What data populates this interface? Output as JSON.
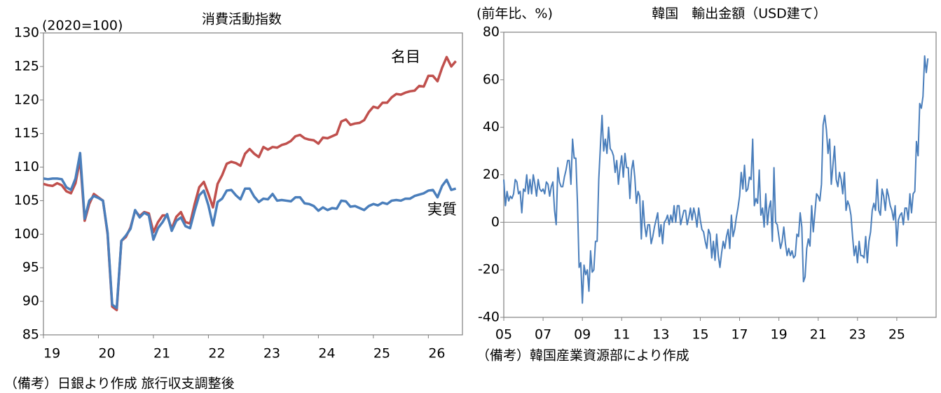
{
  "chart_data": [
    {
      "type": "line",
      "title": "消費活動指数",
      "y_unit_label": "(2020=100)",
      "note": "（備考）日銀より作成 旅行収支調整後",
      "xlim": [
        19,
        26.62
      ],
      "xticks": [
        19,
        20,
        21,
        22,
        23,
        24,
        25,
        26
      ],
      "ylim": [
        85,
        130
      ],
      "yticks": [
        85,
        90,
        95,
        100,
        105,
        110,
        115,
        120,
        125,
        130
      ],
      "x": [
        19,
        19.083,
        19.167,
        19.25,
        19.333,
        19.417,
        19.5,
        19.583,
        19.667,
        19.75,
        19.833,
        19.917,
        20,
        20.083,
        20.167,
        20.25,
        20.333,
        20.417,
        20.5,
        20.583,
        20.667,
        20.75,
        20.833,
        20.917,
        21,
        21.083,
        21.167,
        21.25,
        21.333,
        21.417,
        21.5,
        21.583,
        21.667,
        21.75,
        21.833,
        21.917,
        22,
        22.083,
        22.167,
        22.25,
        22.333,
        22.417,
        22.5,
        22.583,
        22.667,
        22.75,
        22.833,
        22.917,
        23,
        23.083,
        23.167,
        23.25,
        23.333,
        23.417,
        23.5,
        23.583,
        23.667,
        23.75,
        23.833,
        23.917,
        24,
        24.083,
        24.167,
        24.25,
        24.333,
        24.417,
        24.5,
        24.583,
        24.667,
        24.75,
        24.833,
        24.917,
        25,
        25.083,
        25.167,
        25.25,
        25.333,
        25.417,
        25.5,
        25.583,
        25.667,
        25.75,
        25.833,
        25.917,
        26,
        26.083,
        26.167,
        26.25,
        26.333,
        26.417,
        26.5
      ],
      "series": [
        {
          "name": "名目",
          "color": "#c0504d",
          "values": [
            107.5,
            107.3,
            107.2,
            107.6,
            107.3,
            106.4,
            106.1,
            107.6,
            111.2,
            102.0,
            104.5,
            106.0,
            105.5,
            105.0,
            100.0,
            89.2,
            88.7,
            99.0,
            99.6,
            101.0,
            103.5,
            102.7,
            103.3,
            103.1,
            100.3,
            101.8,
            102.8,
            102.8,
            100.8,
            102.6,
            103.3,
            101.8,
            101.6,
            104.5,
            107.0,
            107.8,
            106.0,
            104.0,
            107.5,
            108.8,
            110.5,
            110.8,
            110.6,
            110.2,
            112.0,
            112.7,
            112.0,
            111.5,
            113.0,
            112.6,
            113.0,
            112.9,
            113.3,
            113.5,
            113.9,
            114.6,
            114.8,
            114.3,
            114.1,
            114.0,
            113.5,
            114.4,
            114.3,
            114.6,
            114.9,
            116.8,
            117.1,
            116.3,
            116.5,
            116.6,
            117.0,
            118.2,
            119.0,
            118.8,
            119.6,
            119.6,
            120.4,
            120.9,
            120.8,
            121.1,
            121.3,
            121.4,
            122.1,
            122.0,
            123.6,
            123.6,
            122.8,
            124.8,
            126.4,
            125.0,
            125.8
          ]
        },
        {
          "name": "実質",
          "color": "#4a7ebb",
          "values": [
            108.3,
            108.2,
            108.3,
            108.3,
            108.2,
            107.0,
            106.6,
            108.3,
            112.1,
            102.3,
            105.0,
            105.7,
            105.4,
            105.0,
            100.2,
            89.5,
            89.0,
            99.0,
            99.8,
            100.8,
            103.6,
            102.5,
            103.2,
            102.8,
            99.2,
            100.9,
            101.8,
            103.0,
            100.5,
            102.0,
            102.5,
            101.2,
            100.9,
            103.5,
            105.8,
            106.5,
            104.3,
            101.3,
            104.8,
            105.3,
            106.5,
            106.6,
            105.8,
            105.2,
            106.8,
            106.8,
            105.6,
            104.8,
            105.3,
            105.2,
            106.0,
            105.0,
            105.1,
            105.0,
            104.9,
            105.5,
            105.5,
            104.6,
            104.5,
            104.2,
            103.5,
            104.0,
            103.6,
            103.9,
            103.8,
            105.0,
            104.9,
            104.1,
            104.2,
            103.9,
            103.6,
            104.2,
            104.5,
            104.3,
            104.7,
            104.5,
            105.0,
            105.1,
            105.0,
            105.3,
            105.3,
            105.7,
            105.9,
            106.1,
            106.5,
            106.6,
            105.5,
            107.2,
            108.1,
            106.6,
            106.8
          ]
        }
      ]
    },
    {
      "type": "line",
      "title": "韓国　輸出金額（USD建て）",
      "y_unit_label": "(前年比、%)",
      "note": "（備考）韓国産業資源部により作成",
      "zero_line": true,
      "xlim": [
        5,
        27
      ],
      "xticks": [
        {
          "value": 5,
          "label": "05"
        },
        {
          "value": 7,
          "label": "07"
        },
        {
          "value": 9,
          "label": "09"
        },
        11,
        13,
        15,
        17,
        19,
        21,
        23,
        25
      ],
      "ylim": [
        -40,
        80
      ],
      "yticks": [
        -40,
        -20,
        0,
        20,
        40,
        60,
        80
      ],
      "x": [
        5,
        5.083,
        5.167,
        5.25,
        5.333,
        5.417,
        5.5,
        5.583,
        5.667,
        5.75,
        5.833,
        5.917,
        6,
        6.083,
        6.167,
        6.25,
        6.333,
        6.417,
        6.5,
        6.583,
        6.667,
        6.75,
        6.833,
        6.917,
        7,
        7.083,
        7.167,
        7.25,
        7.333,
        7.417,
        7.5,
        7.583,
        7.667,
        7.75,
        7.833,
        7.917,
        8,
        8.083,
        8.167,
        8.25,
        8.333,
        8.417,
        8.5,
        8.583,
        8.667,
        8.75,
        8.833,
        8.917,
        9,
        9.083,
        9.167,
        9.25,
        9.333,
        9.417,
        9.5,
        9.583,
        9.667,
        9.75,
        9.833,
        9.917,
        10,
        10.083,
        10.167,
        10.25,
        10.333,
        10.417,
        10.5,
        10.583,
        10.667,
        10.75,
        10.833,
        10.917,
        11,
        11.083,
        11.167,
        11.25,
        11.333,
        11.417,
        11.5,
        11.583,
        11.667,
        11.75,
        11.833,
        11.917,
        12,
        12.083,
        12.167,
        12.25,
        12.333,
        12.417,
        12.5,
        12.583,
        12.667,
        12.75,
        12.833,
        12.917,
        13,
        13.083,
        13.167,
        13.25,
        13.333,
        13.417,
        13.5,
        13.583,
        13.667,
        13.75,
        13.833,
        13.917,
        14,
        14.083,
        14.167,
        14.25,
        14.333,
        14.417,
        14.5,
        14.583,
        14.667,
        14.75,
        14.833,
        14.917,
        15,
        15.083,
        15.167,
        15.25,
        15.333,
        15.417,
        15.5,
        15.583,
        15.667,
        15.75,
        15.833,
        15.917,
        16,
        16.083,
        16.167,
        16.25,
        16.333,
        16.417,
        16.5,
        16.583,
        16.667,
        16.75,
        16.833,
        16.917,
        17,
        17.083,
        17.167,
        17.25,
        17.333,
        17.417,
        17.5,
        17.583,
        17.667,
        17.75,
        17.833,
        17.917,
        18,
        18.083,
        18.167,
        18.25,
        18.333,
        18.417,
        18.5,
        18.583,
        18.667,
        18.75,
        18.833,
        18.917,
        19,
        19.083,
        19.167,
        19.25,
        19.333,
        19.417,
        19.5,
        19.583,
        19.667,
        19.75,
        19.833,
        19.917,
        20,
        20.083,
        20.167,
        20.25,
        20.333,
        20.417,
        20.5,
        20.583,
        20.667,
        20.75,
        20.833,
        20.917,
        21,
        21.083,
        21.167,
        21.25,
        21.333,
        21.417,
        21.5,
        21.583,
        21.667,
        21.75,
        21.833,
        21.917,
        22,
        22.083,
        22.167,
        22.25,
        22.333,
        22.417,
        22.5,
        22.583,
        22.667,
        22.75,
        22.833,
        22.917,
        23,
        23.083,
        23.167,
        23.25,
        23.333,
        23.417,
        23.5,
        23.583,
        23.667,
        23.75,
        23.833,
        23.917,
        24,
        24.083,
        24.167,
        24.25,
        24.333,
        24.417,
        24.5,
        24.583,
        24.667,
        24.75,
        24.833,
        24.917,
        25,
        25.083,
        25.167,
        25.25,
        25.333,
        25.417,
        25.5,
        25.583,
        25.667,
        25.75,
        25.833,
        25.917,
        26,
        26.083,
        26.167,
        26.25,
        26.333,
        26.417,
        26.5,
        26.583
      ],
      "series": [
        {
          "color": "#4a7ebb",
          "values": [
            18,
            7,
            13,
            9,
            11,
            10,
            12,
            18,
            17,
            12,
            13,
            4,
            14,
            13,
            20,
            12,
            18,
            12,
            20,
            16,
            11,
            18,
            14,
            13,
            14,
            12,
            17,
            16,
            11,
            15,
            17,
            5,
            -1,
            23,
            17,
            15,
            15,
            19,
            22,
            26,
            26,
            16,
            35,
            27,
            27,
            8,
            -19,
            -17,
            -34,
            -18,
            -22,
            -20,
            -29,
            -12,
            -21,
            -20,
            -8,
            -8,
            18,
            32,
            45,
            30,
            35,
            29,
            40,
            31,
            30,
            28,
            21,
            26,
            16,
            23,
            28,
            19,
            29,
            23,
            23,
            10,
            22,
            26,
            19,
            8,
            13,
            11,
            -7,
            9,
            -1,
            -6,
            -1,
            -1,
            -9,
            -6,
            -2,
            1,
            4,
            -6,
            -1,
            -9,
            0,
            1,
            3,
            -1,
            3,
            0,
            7,
            0,
            7,
            7,
            -1,
            2,
            5,
            5,
            -1,
            2,
            6,
            1,
            6,
            3,
            -2,
            6,
            1,
            -3,
            -4,
            -8,
            -11,
            -3,
            -5,
            -15,
            -8,
            -16,
            -5,
            -14,
            -19,
            -13,
            -8,
            -11,
            -6,
            -3,
            -11,
            3,
            -6,
            -3,
            2,
            6,
            11,
            21,
            14,
            24,
            13,
            14,
            19,
            18,
            35,
            7,
            10,
            8,
            22,
            3,
            6,
            -2,
            12,
            -1,
            6,
            9,
            -8,
            23,
            0,
            -1,
            -6,
            -11,
            -8,
            -2,
            -9,
            -14,
            -11,
            -14,
            -12,
            -15,
            -14,
            -5,
            -6,
            4,
            -2,
            -25,
            -23,
            -11,
            -7,
            -10,
            7,
            -4,
            4,
            12,
            11,
            9,
            16,
            41,
            45,
            39,
            29,
            35,
            16,
            24,
            32,
            18,
            15,
            21,
            18,
            12,
            21,
            5,
            9,
            7,
            3,
            -6,
            -14,
            -10,
            -17,
            -8,
            -14,
            -14,
            -15,
            -6,
            -17,
            -8,
            -4,
            5,
            8,
            5,
            18,
            5,
            3,
            14,
            11,
            5,
            14,
            11,
            7,
            5,
            1,
            7,
            -10,
            1,
            3,
            4,
            -1,
            6,
            6,
            1,
            12,
            4,
            12,
            13,
            34,
            28,
            50,
            48,
            53,
            70,
            63,
            69
          ]
        }
      ]
    }
  ]
}
